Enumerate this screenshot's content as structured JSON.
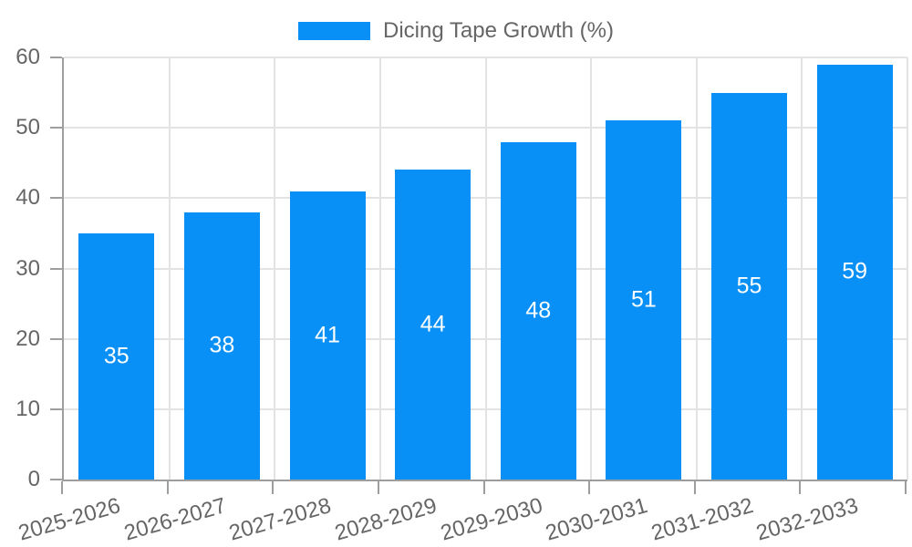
{
  "chart_data": {
    "type": "bar",
    "title": "",
    "legend_label": "Dicing Tape Growth (%)",
    "legend_position": "top",
    "categories": [
      "2025-2026",
      "2026-2027",
      "2027-2028",
      "2028-2029",
      "2029-2030",
      "2030-2031",
      "2031-2032",
      "2032-2033"
    ],
    "series": [
      {
        "name": "Dicing Tape Growth (%)",
        "values": [
          35,
          38,
          41,
          44,
          48,
          51,
          55,
          59
        ]
      }
    ],
    "xlabel": "",
    "ylabel": "",
    "ylim": [
      0,
      60
    ],
    "yticks": [
      0,
      10,
      20,
      30,
      40,
      50,
      60
    ],
    "grid": true,
    "bar_labels_inside": true,
    "colors": {
      "bar": "#0990f7",
      "grid": "#e3e3e3",
      "axis": "#9e9e9e",
      "tick_text": "#666666",
      "bar_label_text": "#ffffff",
      "background": "#ffffff"
    }
  }
}
